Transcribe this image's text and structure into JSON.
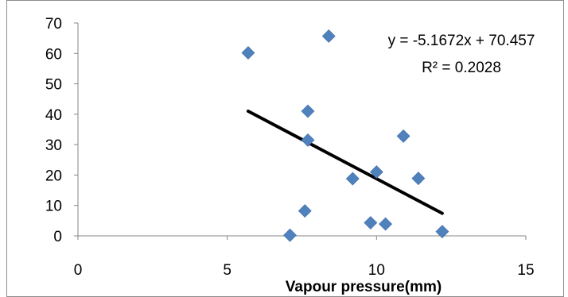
{
  "chart_data": {
    "type": "scatter",
    "title": "",
    "xlabel": "Vapour pressure(mm)",
    "ylabel": "",
    "xlim": [
      0,
      15
    ],
    "ylim": [
      0,
      70
    ],
    "x_ticks": [
      0,
      5,
      10,
      15
    ],
    "y_ticks": [
      0,
      10,
      20,
      30,
      40,
      50,
      60,
      70
    ],
    "x_tick_labels": [
      "0",
      "5",
      "10",
      "15"
    ],
    "y_tick_labels": [
      "0",
      "10",
      "20",
      "30",
      "40",
      "50",
      "60",
      "70"
    ],
    "grid": false,
    "legend": "none",
    "series": [
      {
        "marker": "diamond",
        "color": "#4F81BD",
        "points": [
          {
            "x": 5.7,
            "y": 60.2
          },
          {
            "x": 7.1,
            "y": 0.2
          },
          {
            "x": 7.6,
            "y": 8.2
          },
          {
            "x": 7.7,
            "y": 41.0
          },
          {
            "x": 7.7,
            "y": 31.5
          },
          {
            "x": 8.4,
            "y": 65.7
          },
          {
            "x": 9.2,
            "y": 18.8
          },
          {
            "x": 9.8,
            "y": 4.3
          },
          {
            "x": 10.0,
            "y": 21.0
          },
          {
            "x": 10.3,
            "y": 3.9
          },
          {
            "x": 10.9,
            "y": 32.8
          },
          {
            "x": 11.4,
            "y": 18.9
          },
          {
            "x": 12.2,
            "y": 1.4
          }
        ]
      }
    ],
    "trendline": {
      "type": "linear",
      "slope": -5.1672,
      "intercept": 70.457,
      "x_range": [
        5.7,
        12.2
      ],
      "color": "#000000",
      "equation_label": "y = -5.1672x + 70.457",
      "r2_label": "R² = 0.2028"
    }
  }
}
